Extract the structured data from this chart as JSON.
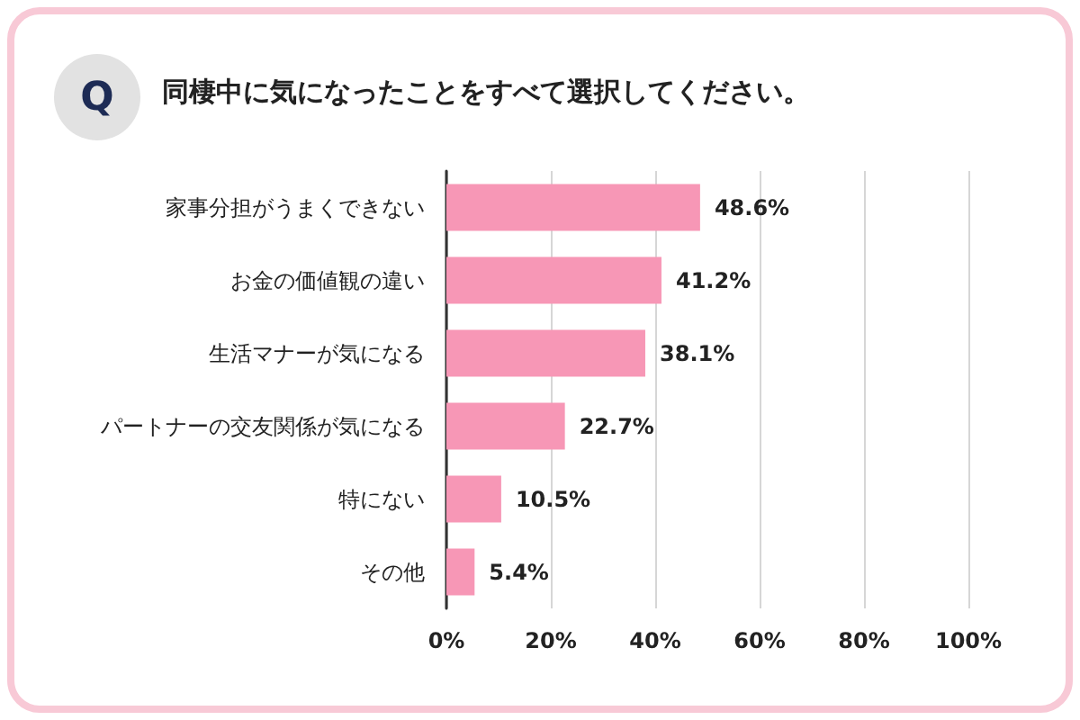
{
  "chart_data": {
    "type": "bar",
    "orientation": "horizontal",
    "title": "同棲中に気になったことをすべて選択してください。",
    "annotations": [
      "Q"
    ],
    "categories": [
      "家事分担がうまくできない",
      "お金の価値観の違い",
      "生活マナーが気になる",
      "パートナーの交友関係が気になる",
      "特にない",
      "その他"
    ],
    "values": [
      48.6,
      41.2,
      38.1,
      22.7,
      10.5,
      5.4
    ],
    "value_labels": [
      "48.6%",
      "41.2%",
      "38.1%",
      "22.7%",
      "10.5%",
      "5.4%"
    ],
    "color": "#f797b6",
    "xlim": [
      0,
      100
    ],
    "xticks": [
      {
        "value": 0,
        "label": "0%"
      },
      {
        "value": 20,
        "label": "20%"
      },
      {
        "value": 40,
        "label": "40%"
      },
      {
        "value": 60,
        "label": "60%"
      },
      {
        "value": 80,
        "label": "80%"
      },
      {
        "value": 100,
        "label": "100%"
      }
    ],
    "grid": "x"
  }
}
